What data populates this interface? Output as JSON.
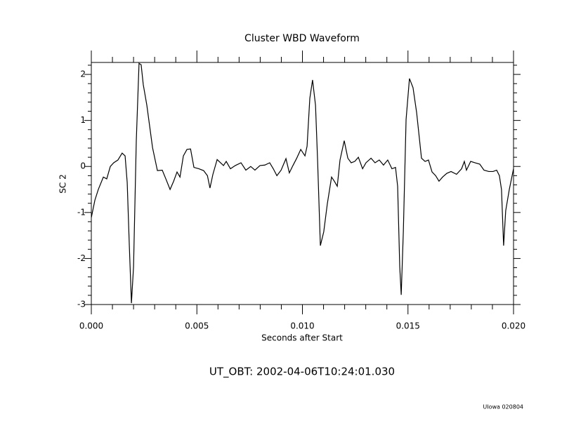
{
  "chart_data": {
    "type": "line",
    "title": "Cluster WBD Waveform",
    "xlabel": "Seconds after Start",
    "ylabel": "SC 2",
    "annotation": "UT_OBT:  2002-04-06T10:24:01.030",
    "footer": "UIowa 020804",
    "xlim": [
      0,
      0.02
    ],
    "xticks": [
      {
        "value": 0,
        "label": "0.000"
      },
      {
        "value": 0.005,
        "label": "0.005"
      },
      {
        "value": 0.01,
        "label": "0.010"
      },
      {
        "value": 0.015,
        "label": "0.015"
      },
      {
        "value": 0.02,
        "label": "0.020"
      }
    ],
    "ylim": [
      -3,
      2.26
    ],
    "yticks": [
      -3,
      -2,
      -1,
      0,
      1,
      2
    ],
    "xminor": 5,
    "yminor": 5,
    "grid": false,
    "series": [
      {
        "color": "#000000",
        "x": [
          0,
          0.00017,
          0.00033,
          0.00057,
          0.00073,
          0.0009,
          0.00106,
          0.00126,
          0.00146,
          0.0016,
          0.0017,
          0.0018,
          0.0019,
          0.002,
          0.00213,
          0.00226,
          0.00236,
          0.00246,
          0.00263,
          0.0029,
          0.00313,
          0.00336,
          0.00353,
          0.00373,
          0.0039,
          0.00406,
          0.0042,
          0.00436,
          0.00453,
          0.0047,
          0.00486,
          0.0051,
          0.00532,
          0.0055,
          0.00562,
          0.00576,
          0.00596,
          0.00612,
          0.00626,
          0.00639,
          0.00659,
          0.00682,
          0.00709,
          0.00732,
          0.00755,
          0.00775,
          0.00799,
          0.00822,
          0.00845,
          0.00862,
          0.00879,
          0.00899,
          0.00922,
          0.00938,
          0.00955,
          0.00972,
          0.00992,
          0.01012,
          0.01022,
          0.01035,
          0.01048,
          0.01062,
          0.01072,
          0.01085,
          0.01101,
          0.01118,
          0.01138,
          0.01151,
          0.01165,
          0.01178,
          0.01198,
          0.01215,
          0.01231,
          0.01248,
          0.01265,
          0.01285,
          0.01301,
          0.01325,
          0.01344,
          0.01364,
          0.01384,
          0.01404,
          0.01424,
          0.01441,
          0.01451,
          0.01461,
          0.01468,
          0.01478,
          0.01491,
          0.01507,
          0.01524,
          0.01541,
          0.01564,
          0.01581,
          0.01597,
          0.01614,
          0.01631,
          0.01647,
          0.01664,
          0.01684,
          0.01704,
          0.0173,
          0.01754,
          0.01767,
          0.01777,
          0.01797,
          0.01817,
          0.0184,
          0.0186,
          0.01883,
          0.01903,
          0.0192,
          0.01933,
          0.01943,
          0.01953,
          0.01963,
          0.0198,
          0.02
        ],
        "values": [
          -1.11,
          -0.73,
          -0.5,
          -0.23,
          -0.27,
          0,
          0.08,
          0.14,
          0.29,
          0.23,
          -0.35,
          -1.72,
          -2.97,
          -2.18,
          0.56,
          2.24,
          2.21,
          1.78,
          1.33,
          0.41,
          -0.09,
          -0.08,
          -0.27,
          -0.5,
          -0.32,
          -0.12,
          -0.23,
          0.23,
          0.37,
          0.38,
          -0.02,
          -0.05,
          -0.09,
          -0.2,
          -0.47,
          -0.17,
          0.15,
          0.08,
          0.02,
          0.11,
          -0.05,
          0.02,
          0.08,
          -0.08,
          0,
          -0.08,
          0.02,
          0.03,
          0.08,
          -0.05,
          -0.2,
          -0.08,
          0.17,
          -0.14,
          0.02,
          0.17,
          0.37,
          0.23,
          0.44,
          1.48,
          1.88,
          1.33,
          0.11,
          -1.72,
          -1.42,
          -0.81,
          -0.23,
          -0.32,
          -0.43,
          0.14,
          0.56,
          0.18,
          0.08,
          0.11,
          0.2,
          -0.05,
          0.08,
          0.18,
          0.08,
          0.14,
          0.03,
          0.14,
          -0.05,
          -0.02,
          -0.43,
          -2.18,
          -2.79,
          -1.42,
          1.02,
          1.91,
          1.71,
          1.17,
          0.18,
          0.11,
          0.14,
          -0.12,
          -0.2,
          -0.32,
          -0.23,
          -0.15,
          -0.11,
          -0.17,
          -0.05,
          0.11,
          -0.08,
          0.11,
          0.08,
          0.05,
          -0.08,
          -0.11,
          -0.11,
          -0.08,
          -0.2,
          -0.5,
          -1.72,
          -0.96,
          -0.5,
          -0.05
        ]
      }
    ]
  }
}
